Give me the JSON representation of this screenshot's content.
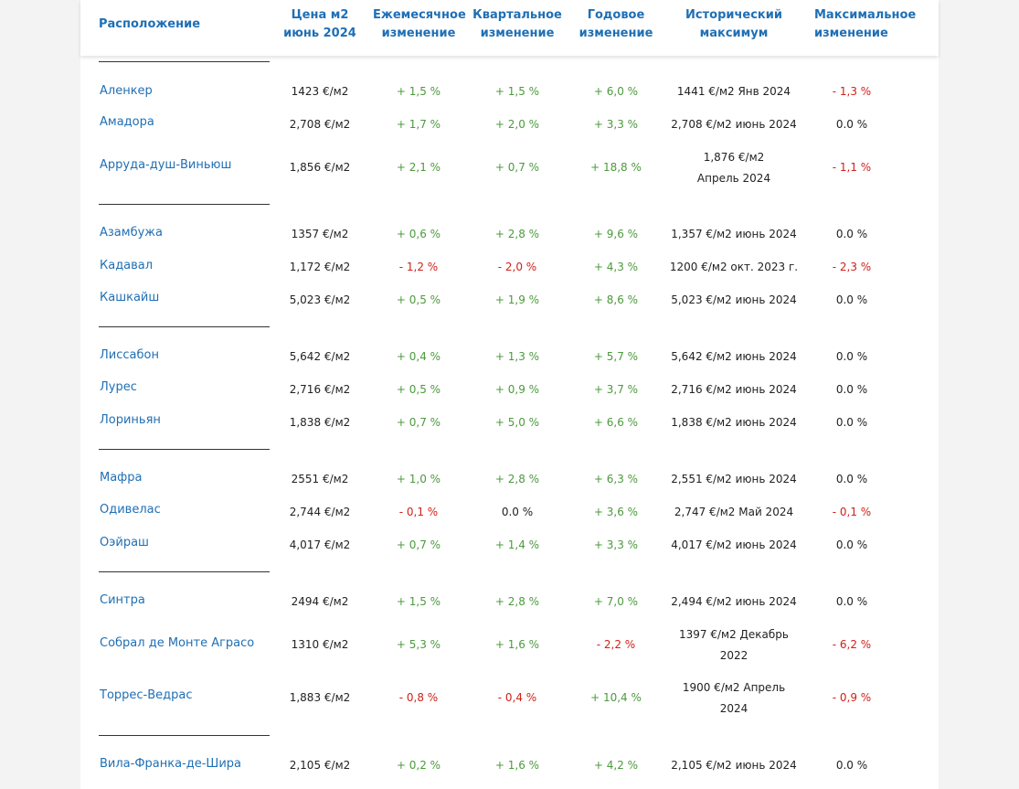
{
  "headers": {
    "location": "Расположение",
    "price_l1": "Цена м2",
    "price_l2": "июнь 2024",
    "monthly_l1": "Ежемесячное",
    "monthly_l2": "изменение",
    "quarterly_l1": "Квартальное",
    "quarterly_l2": "изменение",
    "yearly_l1": "Годовое",
    "yearly_l2": "изменение",
    "historic_l1": "Исторический",
    "historic_l2": "максимум",
    "maxchg_l1": "Максимальное",
    "maxchg_l2": "изменение"
  },
  "colors": {
    "link": "#1f6fb5",
    "positive": "#4c9a3d",
    "negative": "#d0201a"
  },
  "rows": [
    {
      "name": "Аленкер",
      "price": "1423 €/м2",
      "monthly": "+ 1,5 %",
      "quarterly": "+ 1,5 %",
      "yearly": "+ 6,0 %",
      "max": "1441 €/м2 Янв 2024",
      "max_change": "- 1,3 %"
    },
    {
      "name": "Амадора",
      "price": "2,708 €/м2",
      "monthly": "+ 1,7 %",
      "quarterly": "+ 2,0 %",
      "yearly": "+ 3,3 %",
      "max": "2,708 €/м2 июнь 2024",
      "max_change": "0.0 %"
    },
    {
      "name": "Арруда-душ-Виньюш",
      "price": "1,856 €/м2",
      "monthly": "+ 2,1 %",
      "quarterly": "+ 0,7 %",
      "yearly": "+ 18,8 %",
      "max": "1,876 €/м2 Апрель 2024",
      "max_change": "- 1,1 %"
    },
    {
      "name": "Азамбужа",
      "price": "1357 €/м2",
      "monthly": "+ 0,6 %",
      "quarterly": "+ 2,8 %",
      "yearly": "+ 9,6 %",
      "max": "1,357 €/м2 июнь 2024",
      "max_change": "0.0 %"
    },
    {
      "name": "Кадавал",
      "price": "1,172 €/м2",
      "monthly": "- 1,2 %",
      "quarterly": "- 2,0 %",
      "yearly": "+ 4,3 %",
      "max": "1200 €/м2 окт. 2023 г.",
      "max_change": "- 2,3 %"
    },
    {
      "name": "Кашкайш",
      "price": "5,023 €/м2",
      "monthly": "+ 0,5 %",
      "quarterly": "+ 1,9 %",
      "yearly": "+ 8,6 %",
      "max": "5,023 €/м2 июнь 2024",
      "max_change": "0.0 %"
    },
    {
      "name": "Лиссабон",
      "price": "5,642 €/м2",
      "monthly": "+ 0,4 %",
      "quarterly": "+ 1,3 %",
      "yearly": "+ 5,7 %",
      "max": "5,642 €/м2 июнь 2024",
      "max_change": "0.0 %"
    },
    {
      "name": "Лурес",
      "price": "2,716 €/м2",
      "monthly": "+ 0,5 %",
      "quarterly": "+ 0,9 %",
      "yearly": "+ 3,7 %",
      "max": "2,716 €/м2 июнь 2024",
      "max_change": "0.0 %"
    },
    {
      "name": "Лориньян",
      "price": "1,838 €/м2",
      "monthly": "+ 0,7 %",
      "quarterly": "+ 5,0 %",
      "yearly": "+ 6,6 %",
      "max": "1,838 €/м2 июнь 2024",
      "max_change": "0.0 %"
    },
    {
      "name": "Мафра",
      "price": "2551 €/м2",
      "monthly": "+ 1,0 %",
      "quarterly": "+ 2,8 %",
      "yearly": "+ 6,3 %",
      "max": "2,551 €/м2 июнь 2024",
      "max_change": "0.0 %"
    },
    {
      "name": "Одивелас",
      "price": "2,744 €/м2",
      "monthly": "- 0,1 %",
      "quarterly": "0.0 %",
      "yearly": "+ 3,6 %",
      "max": "2,747 €/м2 Май 2024",
      "max_change": "- 0,1 %"
    },
    {
      "name": "Оэйраш",
      "price": "4,017 €/м2",
      "monthly": "+ 0,7 %",
      "quarterly": "+ 1,4 %",
      "yearly": "+ 3,3 %",
      "max": "4,017 €/м2 июнь 2024",
      "max_change": "0.0 %"
    },
    {
      "name": "Синтра",
      "price": "2494 €/м2",
      "monthly": "+ 1,5 %",
      "quarterly": "+ 2,8 %",
      "yearly": "+ 7,0 %",
      "max": "2,494 €/м2 июнь 2024",
      "max_change": "0.0 %"
    },
    {
      "name": "Собрал де Монте Аграсо",
      "price": "1310 €/м2",
      "monthly": "+ 5,3 %",
      "quarterly": "+ 1,6 %",
      "yearly": "- 2,2 %",
      "max": "1397 €/м2 Декабрь 2022",
      "max_change": "- 6,2 %"
    },
    {
      "name": "Торрес-Ведрас",
      "price": "1,883 €/м2",
      "monthly": "- 0,8 %",
      "quarterly": "- 0,4 %",
      "yearly": "+ 10,4 %",
      "max": "1900 €/м2 Апрель 2024",
      "max_change": "- 0,9 %"
    },
    {
      "name": "Вила-Франка-де-Шира",
      "price": "2,105 €/м2",
      "monthly": "+ 0,2 %",
      "quarterly": "+ 1,6 %",
      "yearly": "+ 4,2 %",
      "max": "2,105 €/м2 июнь 2024",
      "max_change": "0.0 %"
    }
  ]
}
